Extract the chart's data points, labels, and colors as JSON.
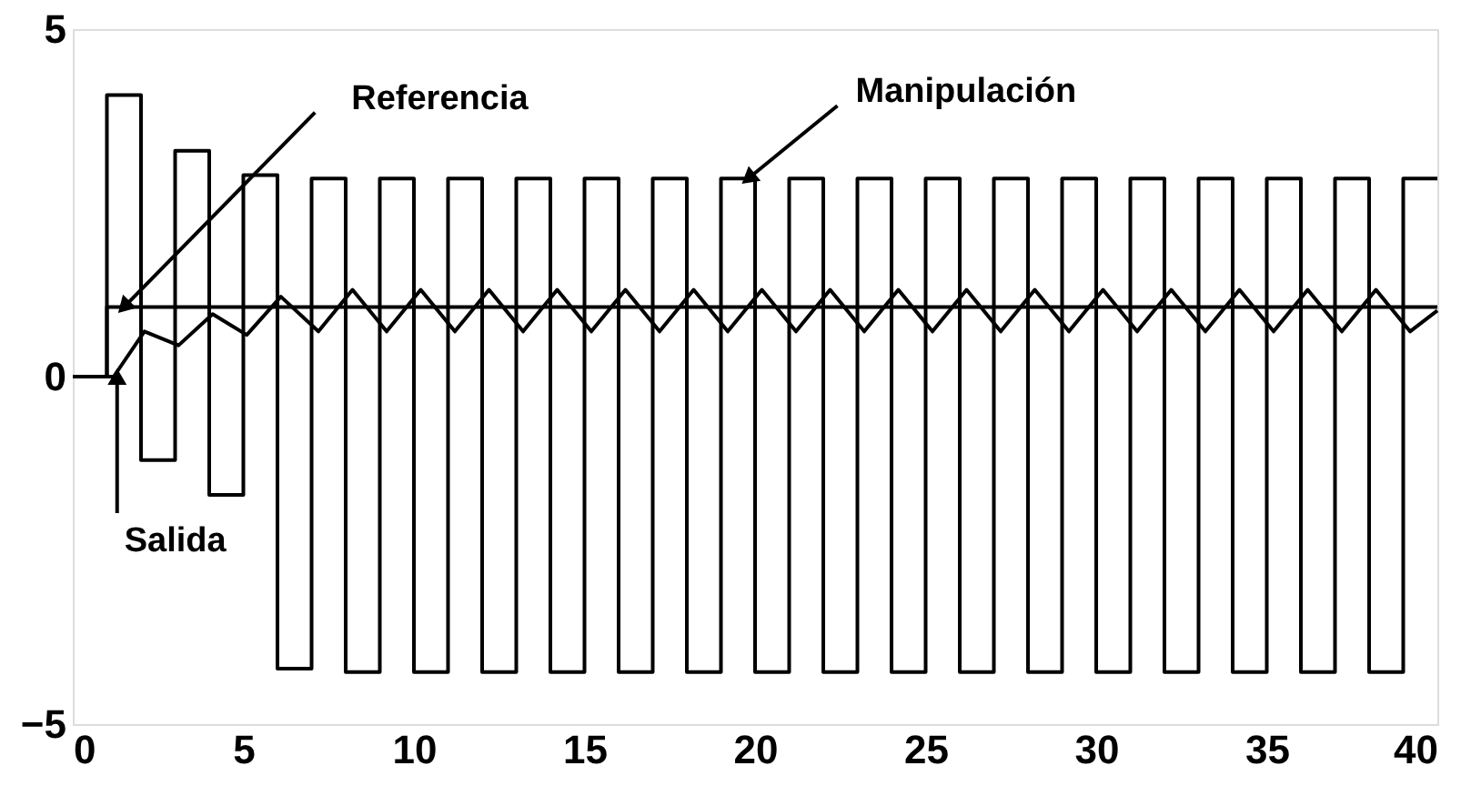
{
  "chart_data": {
    "type": "line",
    "xlim": [
      0,
      40
    ],
    "ylim": [
      -5,
      5
    ],
    "xticks": [
      0,
      5,
      10,
      15,
      20,
      25,
      30,
      35,
      40
    ],
    "yticks": [
      -5,
      0,
      5
    ],
    "grid": false,
    "marker": "none",
    "line_style": "solid",
    "series": [
      {
        "type": "step",
        "color": "#000000",
        "x": [
          0,
          1,
          2,
          3,
          4,
          5,
          6,
          7,
          8,
          9,
          10,
          11,
          12,
          13,
          14,
          15,
          16,
          17,
          18,
          19,
          20,
          21,
          22,
          23,
          24,
          25,
          26,
          27,
          28,
          29,
          30,
          31,
          32,
          33,
          34,
          35,
          36,
          37,
          38,
          39,
          40
        ],
        "values": [
          0,
          4.05,
          -1.2,
          3.25,
          -1.7,
          2.9,
          -4.2,
          2.85,
          -4.25,
          2.85,
          -4.25,
          2.85,
          -4.25,
          2.85,
          -4.25,
          2.85,
          -4.25,
          2.85,
          -4.25,
          2.85,
          -4.25,
          2.85,
          -4.25,
          2.85,
          -4.25,
          2.85,
          -4.25,
          2.85,
          -4.25,
          2.85,
          -4.25,
          2.85,
          -4.25,
          2.85,
          -4.25,
          2.85,
          -4.25,
          2.85,
          -4.25,
          2.85,
          2.85
        ]
      },
      {
        "type": "step",
        "color": "#000000",
        "x": [
          0,
          1,
          40
        ],
        "values": [
          0,
          1,
          1
        ]
      },
      {
        "color": "#000000",
        "x": [
          0,
          1.2,
          2.1,
          3.1,
          4.1,
          5.1,
          6.1,
          7.2,
          8.2,
          9.2,
          10.2,
          11.2,
          12.2,
          13.2,
          14.2,
          15.2,
          16.2,
          17.2,
          18.2,
          19.2,
          20.2,
          21.2,
          22.2,
          23.2,
          24.2,
          25.2,
          26.2,
          27.2,
          28.2,
          29.2,
          30.2,
          31.2,
          32.2,
          33.2,
          34.2,
          35.2,
          36.2,
          37.2,
          38.2,
          39.2,
          40
        ],
        "values": [
          0,
          0,
          0.65,
          0.45,
          0.9,
          0.6,
          1.15,
          0.65,
          1.25,
          0.65,
          1.25,
          0.65,
          1.25,
          0.65,
          1.25,
          0.65,
          1.25,
          0.65,
          1.25,
          0.65,
          1.25,
          0.65,
          1.25,
          0.65,
          1.25,
          0.65,
          1.25,
          0.65,
          1.25,
          0.65,
          1.25,
          0.65,
          1.25,
          0.65,
          1.25,
          0.65,
          1.25,
          0.65,
          1.25,
          0.65,
          0.95
        ]
      }
    ],
    "annotations": [
      {
        "text": "Referencia",
        "x": 1.5,
        "y": 1
      },
      {
        "text": "Manipulación",
        "x": 19.8,
        "y": 2.85
      },
      {
        "text": "Salida",
        "x": 1.3,
        "y": 0
      }
    ]
  }
}
